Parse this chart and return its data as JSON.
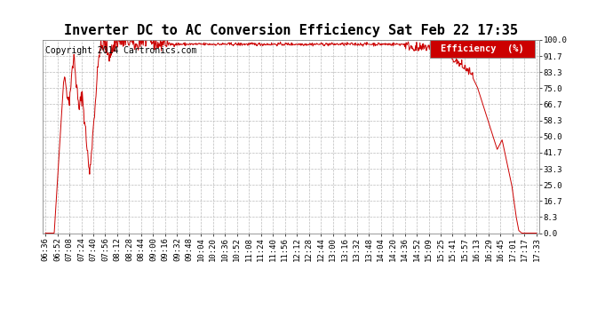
{
  "title": "Inverter DC to AC Conversion Efficiency Sat Feb 22 17:35",
  "copyright": "Copyright 2014 Cartronics.com",
  "legend_label": "Efficiency  (%)",
  "legend_bg": "#cc0000",
  "legend_fg": "#ffffff",
  "line_color": "#cc0000",
  "bg_color": "#ffffff",
  "grid_color": "#bbbbbb",
  "yticks": [
    0.0,
    8.3,
    16.7,
    25.0,
    33.3,
    41.7,
    50.0,
    58.3,
    66.7,
    75.0,
    83.3,
    91.7,
    100.0
  ],
  "xtick_labels": [
    "06:36",
    "06:52",
    "07:08",
    "07:24",
    "07:40",
    "07:56",
    "08:12",
    "08:28",
    "08:44",
    "09:00",
    "09:16",
    "09:32",
    "09:48",
    "10:04",
    "10:20",
    "10:36",
    "10:52",
    "11:08",
    "11:24",
    "11:40",
    "11:56",
    "12:12",
    "12:28",
    "12:44",
    "13:00",
    "13:16",
    "13:32",
    "13:48",
    "14:04",
    "14:20",
    "14:36",
    "14:52",
    "15:09",
    "15:25",
    "15:41",
    "15:57",
    "16:13",
    "16:29",
    "16:45",
    "17:01",
    "17:17",
    "17:33"
  ],
  "ylim": [
    0,
    100
  ],
  "title_fontsize": 11,
  "copyright_fontsize": 7,
  "tick_fontsize": 6.5,
  "legend_fontsize": 7.5
}
